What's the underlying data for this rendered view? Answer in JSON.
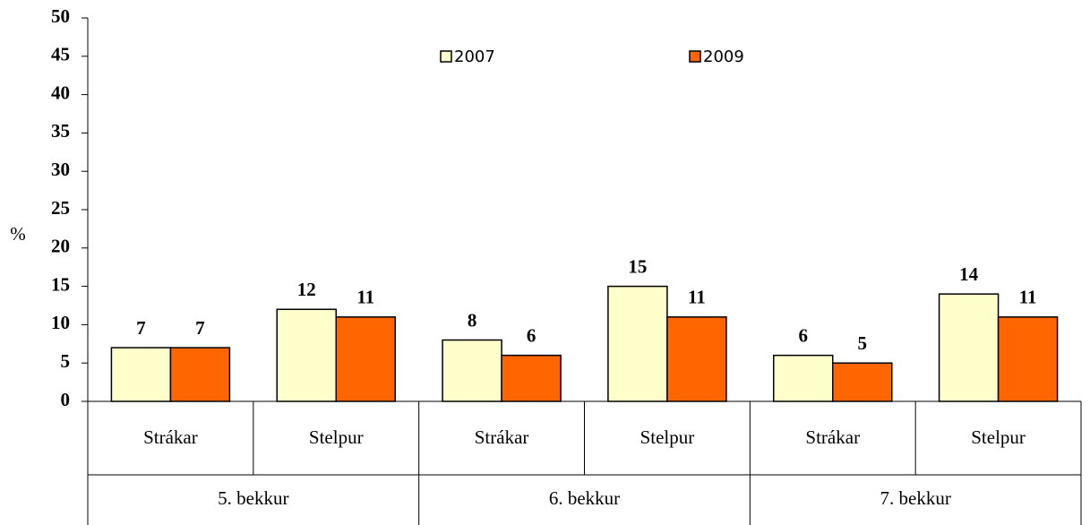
{
  "chart_data": {
    "type": "bar",
    "y_label": "%",
    "categories": [
      "Strákar",
      "Stelpur",
      "Strákar",
      "Stelpur",
      "Strákar",
      "Stelpur"
    ],
    "groups": [
      "5. bekkur",
      "6. bekkur",
      "7. bekkur"
    ],
    "series": [
      {
        "name": "2007",
        "color": "#ffffcc",
        "values": [
          7,
          12,
          8,
          15,
          6,
          14
        ]
      },
      {
        "name": "2009",
        "color": "#ff6600",
        "values": [
          7,
          11,
          6,
          11,
          5,
          11
        ]
      }
    ],
    "ylim": [
      0,
      50
    ],
    "yticks": [
      0,
      5,
      10,
      15,
      20,
      25,
      30,
      35,
      40,
      45,
      50
    ],
    "grid": false
  }
}
